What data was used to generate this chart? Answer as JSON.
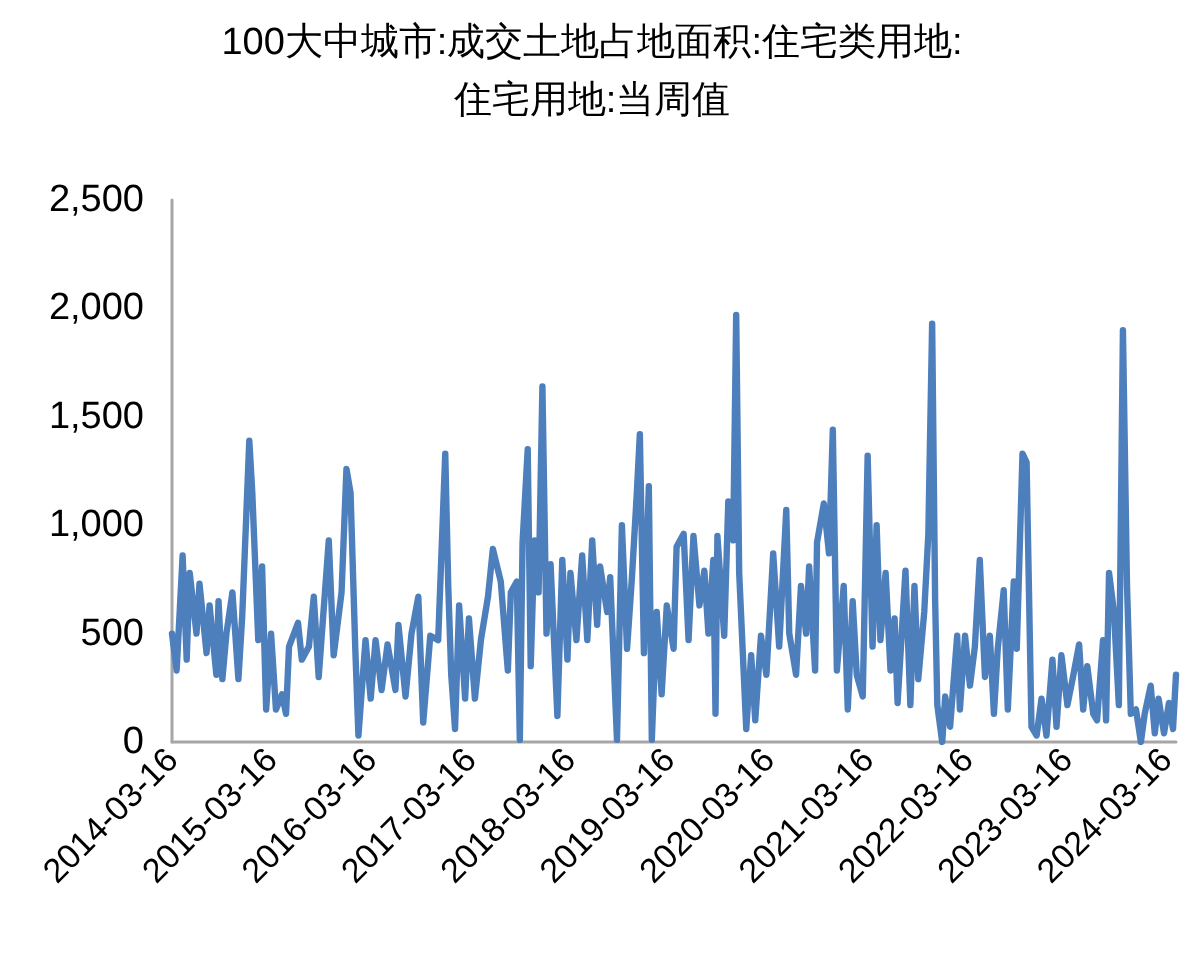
{
  "chart_data": {
    "type": "line",
    "title": "100大中城市:成交土地占地面积:住宅类用地:住宅用地:当周值",
    "x": [
      "2014-03-16",
      "2014-04-02",
      "2014-04-24",
      "2014-05-09",
      "2014-05-20",
      "2014-06-14",
      "2014-06-25",
      "2014-07-21",
      "2014-08-01",
      "2014-08-26",
      "2014-09-03",
      "2014-09-17",
      "2014-10-02",
      "2014-10-24",
      "2014-11-15",
      "2014-11-29",
      "2014-12-25",
      "2015-01-05",
      "2015-01-27",
      "2015-02-10",
      "2015-02-25",
      "2015-03-15",
      "2015-04-02",
      "2015-04-24",
      "2015-05-09",
      "2015-05-20",
      "2015-06-22",
      "2015-07-06",
      "2015-08-01",
      "2015-08-19",
      "2015-09-06",
      "2015-10-13",
      "2015-10-31",
      "2015-11-29",
      "2015-12-17",
      "2016-01-01",
      "2016-01-19",
      "2016-01-30",
      "2016-02-25",
      "2016-03-15",
      "2016-04-02",
      "2016-04-24",
      "2016-05-16",
      "2016-06-14",
      "2016-06-25",
      "2016-07-21",
      "2016-08-12",
      "2016-09-06",
      "2016-09-24",
      "2016-10-20",
      "2016-11-18",
      "2016-12-14",
      "2016-12-25",
      "2017-01-05",
      "2017-01-19",
      "2017-02-03",
      "2017-02-25",
      "2017-03-11",
      "2017-04-02",
      "2017-04-24",
      "2017-05-20",
      "2017-06-07",
      "2017-07-06",
      "2017-08-01",
      "2017-08-12",
      "2017-09-03",
      "2017-09-14",
      "2017-09-24",
      "2017-10-13",
      "2017-10-24",
      "2017-11-07",
      "2017-11-22",
      "2017-12-06",
      "2017-12-21",
      "2018-01-05",
      "2018-01-30",
      "2018-02-17",
      "2018-03-08",
      "2018-03-19",
      "2018-04-10",
      "2018-05-01",
      "2018-05-20",
      "2018-06-07",
      "2018-06-25",
      "2018-07-06",
      "2018-08-01",
      "2018-08-12",
      "2018-09-06",
      "2018-09-24",
      "2018-10-13",
      "2018-10-31",
      "2018-11-18",
      "2018-11-29",
      "2018-12-14",
      "2019-01-01",
      "2019-01-12",
      "2019-01-30",
      "2019-02-17",
      "2019-03-08",
      "2019-04-02",
      "2019-04-13",
      "2019-05-09",
      "2019-05-27",
      "2019-06-14",
      "2019-07-06",
      "2019-07-24",
      "2019-08-08",
      "2019-08-26",
      "2019-09-03",
      "2019-09-10",
      "2019-10-05",
      "2019-10-20",
      "2019-11-07",
      "2019-11-18",
      "2019-11-29",
      "2019-12-25",
      "2020-01-12",
      "2020-01-27",
      "2020-02-17",
      "2020-03-08",
      "2020-04-02",
      "2020-04-24",
      "2020-05-20",
      "2020-05-31",
      "2020-06-25",
      "2020-07-13",
      "2020-08-01",
      "2020-08-12",
      "2020-09-03",
      "2020-09-10",
      "2020-10-05",
      "2020-10-24",
      "2020-11-07",
      "2020-11-22",
      "2020-12-17",
      "2021-01-01",
      "2021-01-19",
      "2021-02-03",
      "2021-02-25",
      "2021-03-15",
      "2021-04-02",
      "2021-04-17",
      "2021-05-01",
      "2021-05-20",
      "2021-06-07",
      "2021-06-22",
      "2021-07-03",
      "2021-08-01",
      "2021-08-19",
      "2021-09-03",
      "2021-09-17",
      "2021-10-09",
      "2021-10-24",
      "2021-11-07",
      "2021-11-18",
      "2021-11-26",
      "2021-12-14",
      "2021-12-25",
      "2022-01-12",
      "2022-02-07",
      "2022-02-17",
      "2022-03-08",
      "2022-03-26",
      "2022-04-13",
      "2022-05-01",
      "2022-05-20",
      "2022-06-07",
      "2022-06-22",
      "2022-07-06",
      "2022-07-28",
      "2022-08-12",
      "2022-09-03",
      "2022-09-14",
      "2022-10-05",
      "2022-10-20",
      "2022-11-07",
      "2022-11-26",
      "2022-12-14",
      "2023-01-01",
      "2023-01-23",
      "2023-02-07",
      "2023-02-25",
      "2023-03-19",
      "2023-04-10",
      "2023-05-01",
      "2023-05-16",
      "2023-05-31",
      "2023-06-22",
      "2023-07-06",
      "2023-07-28",
      "2023-08-08",
      "2023-08-19",
      "2023-09-06",
      "2023-09-24",
      "2023-10-09",
      "2023-10-24",
      "2023-11-07",
      "2023-11-26",
      "2023-12-14",
      "2023-12-28",
      "2024-01-19",
      "2024-02-03",
      "2024-02-17",
      "2024-03-08",
      "2024-03-26",
      "2024-04-10",
      "2024-04-21"
    ],
    "series": [
      {
        "color": "#4e7fbd",
        "values": [
          500,
          330,
          860,
          380,
          780,
          500,
          730,
          410,
          630,
          310,
          650,
          290,
          500,
          690,
          290,
          580,
          1390,
          1150,
          470,
          810,
          150,
          500,
          150,
          220,
          130,
          440,
          550,
          380,
          440,
          670,
          300,
          930,
          400,
          690,
          1260,
          1150,
          410,
          30,
          470,
          200,
          470,
          240,
          450,
          240,
          540,
          210,
          500,
          670,
          90,
          490,
          470,
          1330,
          720,
          310,
          60,
          630,
          200,
          570,
          200,
          470,
          670,
          890,
          740,
          330,
          690,
          740,
          10,
          920,
          1350,
          350,
          930,
          690,
          1640,
          500,
          820,
          120,
          840,
          380,
          780,
          470,
          860,
          470,
          930,
          540,
          810,
          600,
          760,
          10,
          1000,
          430,
          760,
          1150,
          1420,
          410,
          1180,
          10,
          600,
          220,
          630,
          430,
          900,
          960,
          470,
          950,
          630,
          790,
          500,
          840,
          130,
          950,
          490,
          1110,
          930,
          1970,
          780,
          60,
          400,
          100,
          490,
          310,
          870,
          440,
          1070,
          500,
          310,
          720,
          500,
          810,
          330,
          920,
          1100,
          870,
          1440,
          330,
          720,
          150,
          650,
          310,
          210,
          1320,
          440,
          1000,
          470,
          780,
          330,
          570,
          180,
          790,
          170,
          720,
          290,
          600,
          960,
          1930,
          650,
          170,
          0,
          210,
          70,
          490,
          150,
          490,
          260,
          440,
          840,
          300,
          490,
          130,
          430,
          700,
          150,
          740,
          430,
          1330,
          1290,
          70,
          30,
          200,
          30,
          380,
          70,
          400,
          170,
          310,
          450,
          150,
          350,
          130,
          100,
          470,
          100,
          780,
          600,
          170,
          1900,
          720,
          130,
          150,
          0,
          130,
          260,
          40,
          200,
          40,
          180,
          60,
          310
        ]
      }
    ],
    "xlim": [
      "2014-03-16",
      "2024-04-21"
    ],
    "xticks": [
      "2014-03-16",
      "2015-03-16",
      "2016-03-16",
      "2017-03-16",
      "2018-03-16",
      "2019-03-16",
      "2020-03-16",
      "2021-03-16",
      "2022-03-16",
      "2023-03-16",
      "2024-03-16"
    ],
    "ylim": [
      0,
      2500
    ],
    "yticks": [
      0,
      500,
      {
        "value": 1000,
        "label": "1,000"
      },
      {
        "value": 1500,
        "label": "1,500"
      },
      {
        "value": 2000,
        "label": "2,000"
      },
      {
        "value": 2500,
        "label": "2,500"
      }
    ],
    "grid": false,
    "marker": "none",
    "line_style": "solid"
  }
}
